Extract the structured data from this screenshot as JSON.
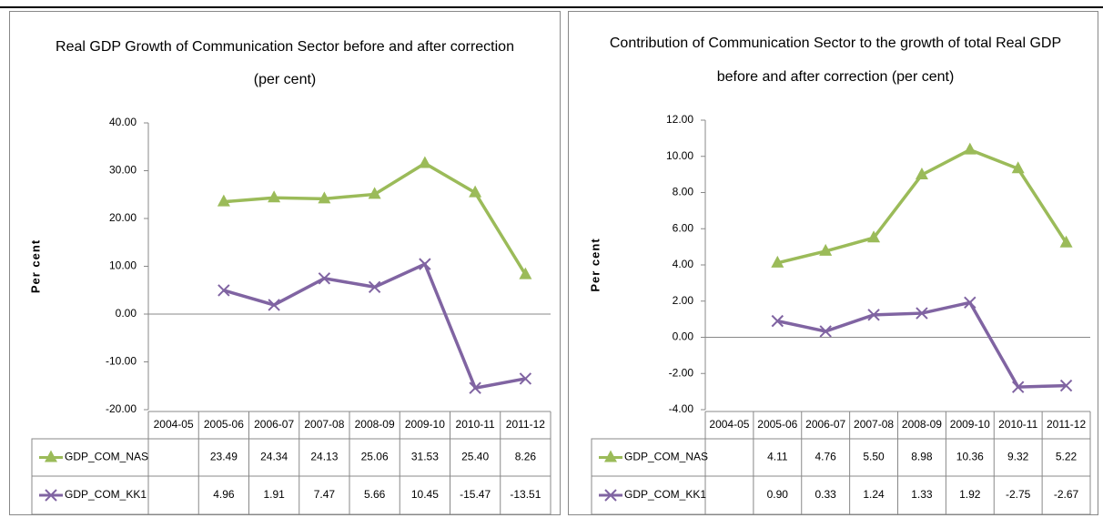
{
  "chart_data": [
    {
      "type": "line",
      "title": [
        "Real GDP Growth of Communication Sector before and after correction",
        "(per cent)"
      ],
      "y_label": "Per cent",
      "categories": [
        "2004-05",
        "2005-06",
        "2006-07",
        "2007-08",
        "2008-09",
        "2009-10",
        "2010-11",
        "2011-12"
      ],
      "series": [
        {
          "name": "GDP_COM_NAS",
          "color": "#9bbb59",
          "marker": "triangle",
          "values": [
            null,
            23.49,
            24.34,
            24.13,
            25.06,
            31.53,
            25.4,
            8.26
          ],
          "value_labels": [
            null,
            "23.49",
            "24.34",
            "24.13",
            "25.06",
            "31.53",
            "25.40",
            "8.26"
          ]
        },
        {
          "name": "GDP_COM_KK1",
          "color": "#8064a2",
          "marker": "x",
          "values": [
            null,
            4.96,
            1.91,
            7.47,
            5.66,
            10.45,
            -15.47,
            -13.51
          ],
          "value_labels": [
            null,
            "4.96",
            "1.91",
            "7.47",
            "5.66",
            "10.45",
            "-15.47",
            "-13.51"
          ]
        }
      ],
      "ylim": [
        -20,
        40
      ],
      "yticks": [
        {
          "value": -20,
          "label": "-20.00"
        },
        {
          "value": -10,
          "label": "-10.00"
        },
        {
          "value": 0,
          "label": "0.00"
        },
        {
          "value": 10,
          "label": "10.00"
        },
        {
          "value": 20,
          "label": "20.00"
        },
        {
          "value": 30,
          "label": "30.00"
        },
        {
          "value": 40,
          "label": "40.00"
        }
      ],
      "grid": false,
      "data_table": true
    },
    {
      "type": "line",
      "title": [
        "Contribution of Communication Sector to the growth of total Real GDP",
        "before and after correction (per cent)"
      ],
      "y_label": "Per cent",
      "categories": [
        "2004-05",
        "2005-06",
        "2006-07",
        "2007-08",
        "2008-09",
        "2009-10",
        "2010-11",
        "2011-12"
      ],
      "series": [
        {
          "name": "GDP_COM_NAS",
          "color": "#9bbb59",
          "marker": "triangle",
          "values": [
            null,
            4.11,
            4.76,
            5.5,
            8.98,
            10.36,
            9.32,
            5.22
          ],
          "value_labels": [
            null,
            "4.11",
            "4.76",
            "5.50",
            "8.98",
            "10.36",
            "9.32",
            "5.22"
          ]
        },
        {
          "name": "GDP_COM_KK1",
          "color": "#8064a2",
          "marker": "x",
          "values": [
            null,
            0.9,
            0.33,
            1.24,
            1.33,
            1.92,
            -2.75,
            -2.67
          ],
          "value_labels": [
            null,
            "0.90",
            "0.33",
            "1.24",
            "1.33",
            "1.92",
            "-2.75",
            "-2.67"
          ]
        }
      ],
      "ylim": [
        -4,
        12
      ],
      "yticks": [
        {
          "value": -4,
          "label": "-4.00"
        },
        {
          "value": -2,
          "label": "-2.00"
        },
        {
          "value": 0,
          "label": "0.00"
        },
        {
          "value": 2,
          "label": "2.00"
        },
        {
          "value": 4,
          "label": "4.00"
        },
        {
          "value": 6,
          "label": "6.00"
        },
        {
          "value": 8,
          "label": "8.00"
        },
        {
          "value": 10,
          "label": "10.00"
        },
        {
          "value": 12,
          "label": "12.00"
        }
      ],
      "grid": false,
      "data_table": true
    }
  ]
}
